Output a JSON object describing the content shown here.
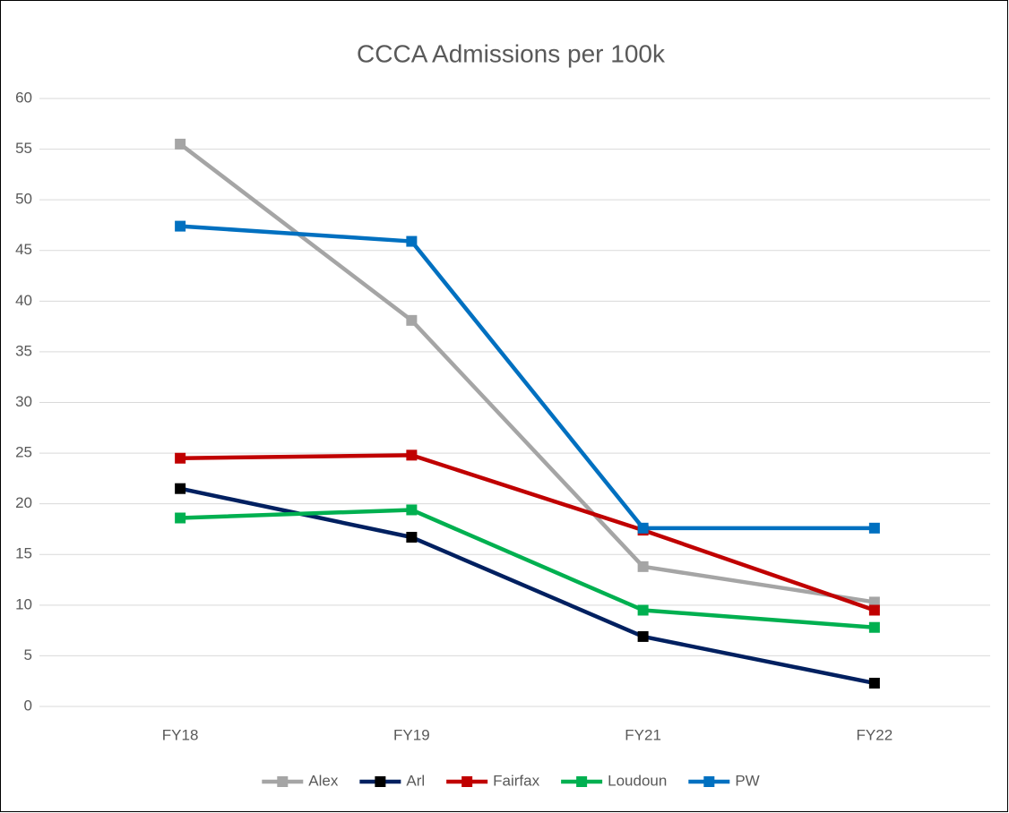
{
  "chart_data": {
    "type": "line",
    "title": "CCCA Admissions per 100k",
    "categories": [
      "FY18",
      "FY19",
      "FY21",
      "FY22"
    ],
    "series": [
      {
        "name": "Alex",
        "color": "#a5a5a5",
        "marker_color": "#a5a5a5",
        "values": [
          55.5,
          38.1,
          13.8,
          10.3
        ]
      },
      {
        "name": "Arl",
        "color": "#002060",
        "marker_color": "#000000",
        "values": [
          21.5,
          16.7,
          6.9,
          2.3
        ]
      },
      {
        "name": "Fairfax",
        "color": "#c00000",
        "marker_color": "#c00000",
        "values": [
          24.5,
          24.8,
          17.4,
          9.5
        ]
      },
      {
        "name": "Loudoun",
        "color": "#00b050",
        "marker_color": "#00b050",
        "values": [
          18.6,
          19.4,
          9.5,
          7.8
        ]
      },
      {
        "name": "PW",
        "color": "#0070c0",
        "marker_color": "#0070c0",
        "values": [
          47.4,
          45.9,
          17.6,
          17.6
        ]
      }
    ],
    "ylim": [
      0,
      60
    ],
    "yticks": [
      0,
      5,
      10,
      15,
      20,
      25,
      30,
      35,
      40,
      45,
      50,
      55,
      60
    ],
    "grid": true,
    "legend": "bottom"
  }
}
